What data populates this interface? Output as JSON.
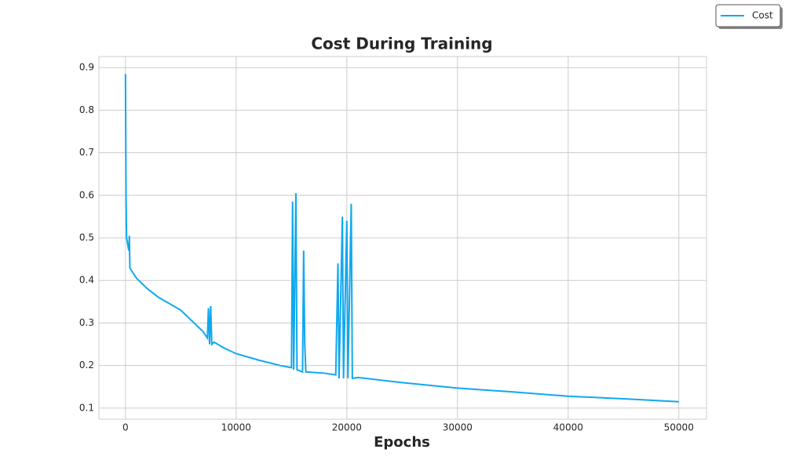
{
  "chart_data": {
    "type": "line",
    "title": "Cost During Training",
    "x_label": "Epochs",
    "x": [
      0,
      50,
      100,
      300,
      350,
      400,
      500,
      1000,
      2000,
      3000,
      4000,
      5000,
      6000,
      7000,
      7400,
      7500,
      7600,
      7700,
      7800,
      8000,
      9000,
      10000,
      12000,
      14000,
      15000,
      15100,
      15200,
      15400,
      15500,
      16000,
      16100,
      16200,
      16300,
      18000,
      19000,
      19200,
      19300,
      19600,
      19700,
      20000,
      20100,
      20400,
      20500,
      21000,
      25000,
      30000,
      35000,
      40000,
      45000,
      50000
    ],
    "series": [
      {
        "name": "Cost",
        "color": "#10a8ee",
        "values": [
          0.885,
          0.6,
          0.5,
          0.47,
          0.505,
          0.43,
          0.425,
          0.405,
          0.38,
          0.36,
          0.345,
          0.33,
          0.305,
          0.28,
          0.265,
          0.335,
          0.25,
          0.34,
          0.25,
          0.255,
          0.24,
          0.228,
          0.213,
          0.2,
          0.195,
          0.585,
          0.19,
          0.605,
          0.19,
          0.185,
          0.47,
          0.25,
          0.185,
          0.182,
          0.178,
          0.44,
          0.17,
          0.55,
          0.17,
          0.54,
          0.17,
          0.58,
          0.17,
          0.172,
          0.16,
          0.147,
          0.138,
          0.128,
          0.122,
          0.115
        ]
      }
    ],
    "xlim": [
      -2400,
      52500
    ],
    "ylim": [
      0.074,
      0.926
    ],
    "xticks": [
      0,
      10000,
      20000,
      30000,
      40000,
      50000
    ],
    "yticks": [
      0.1,
      0.2,
      0.3,
      0.4,
      0.5,
      0.6,
      0.7,
      0.8,
      0.9
    ],
    "grid": true,
    "legend": "upper right"
  }
}
